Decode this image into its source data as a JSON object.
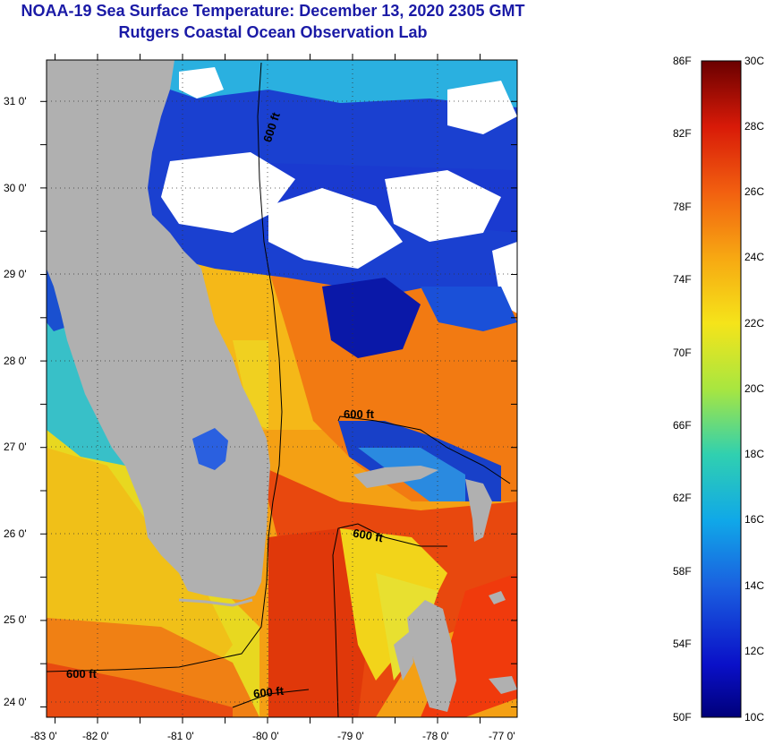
{
  "title": "NOAA-19 Sea Surface Temperature:  December 13, 2020 2305 GMT",
  "subtitle": "Rutgers Coastal Ocean Observation Lab",
  "map": {
    "lat_labels": [
      "31 0'",
      "30 0'",
      "29 0'",
      "28 0'",
      "27 0'",
      "26 0'",
      "25 0'",
      "24 0'"
    ],
    "lon_labels": [
      "-83 0'",
      "-82 0'",
      "-81 0'",
      "-80 0'",
      "-79 0'",
      "-78 0'",
      "-77 0'"
    ],
    "contour_labels": [
      "600 ft",
      "600 ft",
      "600 ft",
      "600 ft",
      "600 ft"
    ]
  },
  "colorbar": {
    "f_labels": [
      "86F",
      "82F",
      "78F",
      "74F",
      "70F",
      "66F",
      "62F",
      "58F",
      "54F",
      "50F"
    ],
    "c_labels": [
      "30C",
      "28C",
      "26C",
      "24C",
      "22C",
      "20C",
      "18C",
      "16C",
      "14C",
      "12C",
      "10C"
    ],
    "colors": [
      "#7a0000",
      "#c40000",
      "#e8200a",
      "#f4600f",
      "#f79a12",
      "#f5d41a",
      "#cfe630",
      "#7ed87a",
      "#2ec9c4",
      "#1090e0",
      "#1a4ed8",
      "#0a10a8"
    ]
  }
}
